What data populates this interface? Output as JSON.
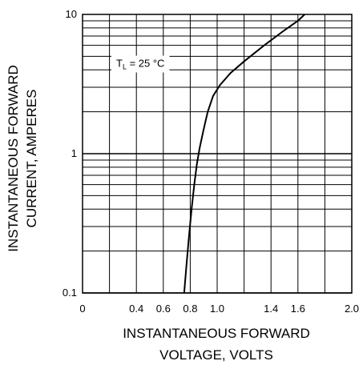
{
  "chart_data": {
    "type": "line",
    "x_axis": {
      "label_lines": [
        "INSTANTANEOUS FORWARD",
        "VOLTAGE, VOLTS"
      ],
      "range": [
        0,
        2.0
      ],
      "ticks": [
        0,
        0.4,
        0.6,
        0.8,
        1.0,
        1.4,
        1.6,
        2.0
      ],
      "tick_labels": [
        "0",
        "0.4",
        "0.6",
        "0.8",
        "1.0",
        "1.4",
        "1.6",
        "2.0"
      ],
      "gridlines": [
        0.2,
        0.4,
        0.6,
        0.8,
        1.0,
        1.2,
        1.4,
        1.6,
        1.8
      ],
      "scale": "linear"
    },
    "y_axis": {
      "label_lines": [
        "INSTANTANEOUS FORWARD",
        "CURRENT,  AMPERES"
      ],
      "range": [
        0.1,
        10
      ],
      "ticks": [
        0.1,
        1,
        10
      ],
      "tick_labels": [
        "0.1",
        "1",
        "10"
      ],
      "scale": "log"
    },
    "grid": true,
    "annotation": {
      "text_main": "T",
      "text_sub": "L",
      "text_rest": " = 25 °C",
      "at": [
        0.25,
        4.2
      ]
    },
    "series": [
      {
        "x": [
          0.755,
          0.77,
          0.79,
          0.81,
          0.83,
          0.85,
          0.87,
          0.9,
          0.93,
          0.97,
          1.02,
          1.1,
          1.2,
          1.35,
          1.5,
          1.6,
          1.65
        ],
        "y": [
          0.1,
          0.15,
          0.25,
          0.4,
          0.6,
          0.85,
          1.1,
          1.5,
          2.0,
          2.6,
          3.1,
          3.8,
          4.6,
          6.0,
          7.7,
          9.0,
          10.0
        ]
      }
    ]
  }
}
